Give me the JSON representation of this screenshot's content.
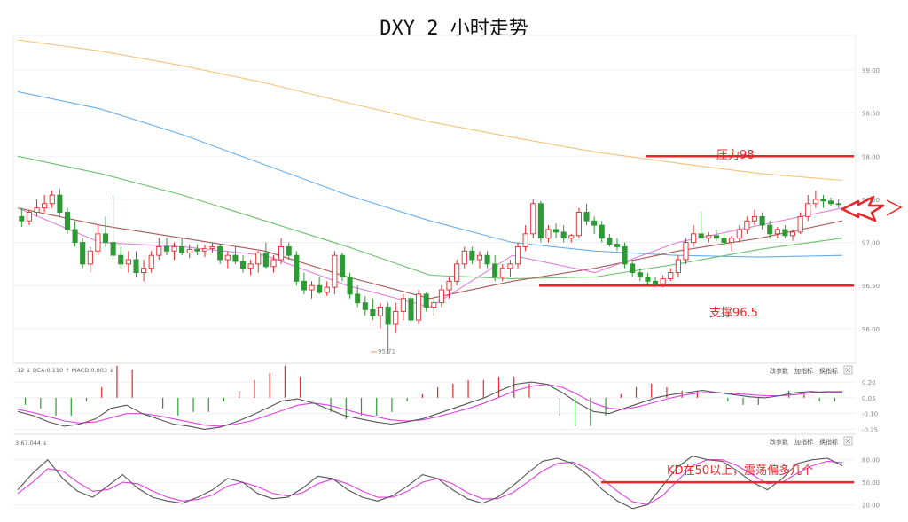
{
  "title": "DXY 2 小时走势",
  "annotations": {
    "resistance": "压力98",
    "support": "支撑96.5",
    "kd_note": "KD在50以上，震荡偏多几个",
    "low_label": "95.71"
  },
  "colors": {
    "up": "#e8272a",
    "down": "#2d9a35",
    "level_line": "#e8272a",
    "ma_orange": "#f5c27a",
    "ma_blue": "#6aaee8",
    "ma_green": "#6cbf6c",
    "ma_brown": "#a55a5a",
    "ma_pink": "#e080e0",
    "macd_line": "#555555",
    "signal_line": "#e040e0"
  },
  "panels": {
    "macd_header": ".12 ↓ DEA:0.110 ↑ MACD:0.003 ↓",
    "kd_header": "3:67.044 ↓",
    "buttons": [
      "改参数",
      "加指标",
      "换指标"
    ],
    "close_icon": "close-icon"
  },
  "chart_data": [
    {
      "type": "candlestick",
      "title": "DXY 2 小时走势",
      "yticks": [
        "99.00",
        "98.50",
        "98.00",
        "97.50",
        "97.00",
        "96.50",
        "96.00"
      ],
      "ylim": [
        95.7,
        99.35
      ],
      "levels": [
        {
          "label": "压力98",
          "value": 98.0
        },
        {
          "label": "支撑96.5",
          "value": 96.5
        }
      ],
      "low_marker": 95.71,
      "ohlc": [
        [
          97.3,
          97.4,
          97.18,
          97.25
        ],
        [
          97.25,
          97.38,
          97.2,
          97.35
        ],
        [
          97.35,
          97.5,
          97.3,
          97.4
        ],
        [
          97.4,
          97.55,
          97.35,
          97.45
        ],
        [
          97.45,
          97.6,
          97.4,
          97.55
        ],
        [
          97.55,
          97.62,
          97.3,
          97.35
        ],
        [
          97.35,
          97.4,
          97.1,
          97.15
        ],
        [
          97.15,
          97.25,
          96.95,
          97.0
        ],
        [
          97.0,
          97.05,
          96.7,
          96.75
        ],
        [
          96.75,
          96.95,
          96.65,
          96.9
        ],
        [
          96.9,
          97.2,
          96.85,
          97.1
        ],
        [
          97.1,
          97.3,
          96.95,
          97.0
        ],
        [
          97.0,
          97.55,
          96.8,
          96.85
        ],
        [
          96.85,
          96.95,
          96.7,
          96.75
        ],
        [
          96.75,
          96.9,
          96.65,
          96.8
        ],
        [
          96.8,
          96.9,
          96.6,
          96.65
        ],
        [
          96.65,
          96.8,
          96.55,
          96.7
        ],
        [
          96.7,
          96.9,
          96.65,
          96.85
        ],
        [
          96.85,
          97.05,
          96.8,
          96.95
        ],
        [
          96.95,
          97.05,
          96.85,
          96.9
        ],
        [
          96.9,
          97.0,
          96.8,
          96.95
        ],
        [
          96.95,
          97.05,
          96.85,
          96.88
        ],
        [
          96.88,
          96.98,
          96.82,
          96.92
        ],
        [
          96.92,
          96.98,
          96.85,
          96.9
        ],
        [
          96.9,
          96.97,
          96.83,
          96.93
        ],
        [
          96.93,
          97.0,
          96.88,
          96.95
        ],
        [
          96.95,
          96.98,
          96.75,
          96.8
        ],
        [
          96.8,
          96.9,
          96.7,
          96.85
        ],
        [
          96.85,
          96.95,
          96.75,
          96.78
        ],
        [
          96.78,
          96.85,
          96.65,
          96.7
        ],
        [
          96.7,
          96.8,
          96.62,
          96.75
        ],
        [
          96.75,
          96.9,
          96.65,
          96.88
        ],
        [
          96.88,
          97.0,
          96.7,
          96.72
        ],
        [
          96.72,
          96.85,
          96.65,
          96.8
        ],
        [
          96.8,
          97.05,
          96.75,
          96.95
        ],
        [
          96.95,
          97.0,
          96.8,
          96.85
        ],
        [
          96.85,
          96.9,
          96.5,
          96.55
        ],
        [
          96.55,
          96.65,
          96.4,
          96.45
        ],
        [
          96.45,
          96.55,
          96.35,
          96.5
        ],
        [
          96.5,
          96.6,
          96.4,
          96.42
        ],
        [
          96.42,
          96.55,
          96.38,
          96.48
        ],
        [
          96.48,
          96.9,
          96.4,
          96.85
        ],
        [
          96.85,
          96.88,
          96.55,
          96.6
        ],
        [
          96.6,
          96.65,
          96.35,
          96.4
        ],
        [
          96.4,
          96.5,
          96.25,
          96.3
        ],
        [
          96.3,
          96.38,
          96.15,
          96.22
        ],
        [
          96.22,
          96.35,
          96.1,
          96.15
        ],
        [
          96.15,
          96.3,
          96.0,
          96.25
        ],
        [
          96.25,
          96.3,
          95.71,
          96.05
        ],
        [
          96.05,
          96.3,
          95.95,
          96.2
        ],
        [
          96.2,
          96.4,
          96.1,
          96.35
        ],
        [
          96.35,
          96.38,
          96.05,
          96.1
        ],
        [
          96.1,
          96.45,
          96.05,
          96.4
        ],
        [
          96.4,
          96.42,
          96.2,
          96.25
        ],
        [
          96.25,
          96.35,
          96.15,
          96.3
        ],
        [
          96.3,
          96.5,
          96.25,
          96.45
        ],
        [
          96.45,
          96.6,
          96.35,
          96.55
        ],
        [
          96.55,
          96.8,
          96.5,
          96.75
        ],
        [
          96.75,
          96.95,
          96.7,
          96.9
        ],
        [
          96.9,
          96.95,
          96.75,
          96.8
        ],
        [
          96.8,
          96.9,
          96.7,
          96.85
        ],
        [
          96.85,
          96.9,
          96.7,
          96.75
        ],
        [
          96.75,
          96.85,
          96.55,
          96.6
        ],
        [
          96.6,
          96.75,
          96.55,
          96.7
        ],
        [
          96.7,
          96.8,
          96.6,
          96.75
        ],
        [
          96.75,
          97.0,
          96.7,
          96.95
        ],
        [
          96.95,
          97.2,
          96.9,
          97.1
        ],
        [
          97.1,
          97.5,
          97.05,
          97.45
        ],
        [
          97.45,
          97.48,
          97.0,
          97.05
        ],
        [
          97.05,
          97.2,
          97.0,
          97.15
        ],
        [
          97.15,
          97.22,
          97.05,
          97.12
        ],
        [
          97.12,
          97.2,
          97.0,
          97.05
        ],
        [
          97.05,
          97.1,
          97.0,
          97.08
        ],
        [
          97.08,
          97.4,
          97.05,
          97.35
        ],
        [
          97.35,
          97.45,
          97.2,
          97.25
        ],
        [
          97.25,
          97.3,
          97.1,
          97.2
        ],
        [
          97.2,
          97.25,
          97.0,
          97.05
        ],
        [
          97.05,
          97.1,
          96.95,
          96.98
        ],
        [
          96.98,
          97.05,
          96.9,
          96.95
        ],
        [
          96.95,
          97.0,
          96.7,
          96.75
        ],
        [
          96.75,
          96.8,
          96.6,
          96.65
        ],
        [
          96.65,
          96.7,
          96.55,
          96.6
        ],
        [
          96.6,
          96.65,
          96.5,
          96.55
        ],
        [
          96.55,
          96.6,
          96.48,
          96.52
        ],
        [
          96.52,
          96.62,
          96.48,
          96.58
        ],
        [
          96.58,
          96.7,
          96.55,
          96.65
        ],
        [
          96.65,
          96.85,
          96.6,
          96.8
        ],
        [
          96.8,
          97.05,
          96.75,
          97.0
        ],
        [
          97.0,
          97.2,
          96.95,
          97.1
        ],
        [
          97.1,
          97.35,
          97.05,
          97.05
        ],
        [
          97.05,
          97.12,
          97.0,
          97.08
        ],
        [
          97.08,
          97.15,
          97.02,
          97.05
        ],
        [
          97.05,
          97.1,
          96.95,
          97.0
        ],
        [
          97.0,
          97.08,
          96.9,
          97.05
        ],
        [
          97.05,
          97.2,
          97.0,
          97.15
        ],
        [
          97.15,
          97.3,
          97.1,
          97.25
        ],
        [
          97.25,
          97.38,
          97.2,
          97.3
        ],
        [
          97.3,
          97.35,
          97.15,
          97.2
        ],
        [
          97.2,
          97.25,
          97.05,
          97.1
        ],
        [
          97.1,
          97.18,
          97.05,
          97.15
        ],
        [
          97.15,
          97.2,
          97.05,
          97.08
        ],
        [
          97.08,
          97.15,
          97.02,
          97.12
        ],
        [
          97.12,
          97.35,
          97.1,
          97.3
        ],
        [
          97.3,
          97.55,
          97.25,
          97.45
        ],
        [
          97.45,
          97.6,
          97.4,
          97.5
        ],
        [
          97.5,
          97.55,
          97.4,
          97.48
        ],
        [
          97.48,
          97.52,
          97.42,
          97.45
        ],
        [
          97.45,
          97.5,
          97.4,
          97.44
        ]
      ],
      "moving_averages": [
        {
          "color": "#f5c27a",
          "values": [
            99.35,
            99.22,
            99.05,
            98.85,
            98.62,
            98.4,
            98.22,
            98.05,
            97.92,
            97.8,
            97.72
          ]
        },
        {
          "color": "#6aaee8",
          "values": [
            98.75,
            98.55,
            98.25,
            97.9,
            97.55,
            97.25,
            97.0,
            96.9,
            96.85,
            96.83,
            96.85
          ]
        },
        {
          "color": "#6cbf6c",
          "values": [
            98.0,
            97.8,
            97.55,
            97.25,
            96.95,
            96.62,
            96.58,
            96.6,
            96.75,
            96.92,
            97.05
          ]
        },
        {
          "color": "#a55a5a",
          "values": [
            97.4,
            97.2,
            97.05,
            96.9,
            96.6,
            96.35,
            96.55,
            96.7,
            96.9,
            97.05,
            97.25
          ]
        },
        {
          "color": "#e080e0",
          "values": [
            97.4,
            97.0,
            96.95,
            96.85,
            96.5,
            96.25,
            96.85,
            96.65,
            97.0,
            97.2,
            97.4
          ]
        }
      ]
    },
    {
      "type": "macd",
      "header": ".12 ↓ DEA:0.110 ↑ MACD:0.003 ↓",
      "yticks": [
        "0.20",
        "0.05",
        "-0.10",
        "-0.25"
      ],
      "ylim": [
        -0.28,
        0.26
      ],
      "dif": [
        -0.08,
        -0.12,
        -0.18,
        -0.22,
        -0.2,
        -0.15,
        -0.05,
        -0.02,
        -0.1,
        -0.15,
        -0.2,
        -0.22,
        -0.25,
        -0.23,
        -0.18,
        -0.12,
        -0.05,
        0.02,
        0.04,
        0.0,
        -0.06,
        -0.12,
        -0.15,
        -0.18,
        -0.2,
        -0.18,
        -0.15,
        -0.1,
        -0.05,
        0.0,
        0.05,
        0.12,
        0.18,
        0.2,
        0.18,
        0.1,
        0.0,
        -0.08,
        -0.1,
        -0.05,
        0.0,
        0.05,
        0.08,
        0.1,
        0.12,
        0.1,
        0.08,
        0.06,
        0.05,
        0.07,
        0.1,
        0.11,
        0.1,
        0.1
      ],
      "dea": [
        -0.06,
        -0.09,
        -0.13,
        -0.17,
        -0.19,
        -0.18,
        -0.14,
        -0.1,
        -0.1,
        -0.12,
        -0.15,
        -0.18,
        -0.21,
        -0.22,
        -0.2,
        -0.17,
        -0.12,
        -0.07,
        -0.02,
        0.0,
        -0.02,
        -0.06,
        -0.1,
        -0.13,
        -0.16,
        -0.17,
        -0.16,
        -0.13,
        -0.09,
        -0.05,
        0.0,
        0.06,
        0.12,
        0.16,
        0.18,
        0.15,
        0.08,
        0.0,
        -0.05,
        -0.06,
        -0.03,
        0.01,
        0.05,
        0.08,
        0.1,
        0.1,
        0.09,
        0.08,
        0.07,
        0.07,
        0.08,
        0.1,
        0.11,
        0.11
      ],
      "hist": [
        -0.02,
        -0.03,
        -0.05,
        -0.05,
        -0.01,
        0.03,
        0.09,
        0.08,
        0.0,
        -0.03,
        -0.05,
        -0.04,
        -0.04,
        -0.01,
        0.02,
        0.05,
        0.07,
        0.09,
        0.06,
        0.0,
        -0.04,
        -0.06,
        -0.05,
        -0.05,
        -0.04,
        -0.01,
        0.01,
        0.03,
        0.04,
        0.05,
        0.05,
        0.06,
        0.06,
        0.04,
        0.0,
        -0.05,
        -0.08,
        -0.08,
        -0.05,
        0.01,
        0.03,
        0.04,
        0.03,
        0.02,
        0.02,
        0.0,
        -0.01,
        -0.02,
        -0.02,
        0.0,
        0.02,
        0.01,
        -0.01,
        -0.01
      ]
    },
    {
      "type": "kd",
      "header": "3:67.044 ↓",
      "yticks": [
        "80.00",
        "50.00",
        "20.00"
      ],
      "ylim": [
        10,
        95
      ],
      "kd_level": 50,
      "k": [
        40,
        62,
        80,
        55,
        38,
        30,
        45,
        60,
        42,
        30,
        25,
        22,
        30,
        40,
        55,
        50,
        35,
        28,
        30,
        42,
        58,
        55,
        40,
        30,
        25,
        32,
        45,
        60,
        55,
        40,
        28,
        22,
        30,
        45,
        62,
        78,
        82,
        75,
        60,
        40,
        25,
        15,
        20,
        45,
        70,
        85,
        80,
        78,
        65,
        50,
        40,
        55,
        75,
        80,
        82,
        72
      ],
      "d": [
        35,
        50,
        68,
        65,
        50,
        38,
        40,
        50,
        48,
        38,
        30,
        25,
        27,
        33,
        45,
        50,
        44,
        35,
        32,
        36,
        48,
        54,
        48,
        38,
        30,
        30,
        38,
        50,
        55,
        48,
        36,
        28,
        28,
        36,
        50,
        65,
        75,
        77,
        68,
        54,
        38,
        24,
        20,
        32,
        52,
        72,
        80,
        80,
        72,
        60,
        48,
        50,
        62,
        72,
        78,
        76
      ]
    }
  ]
}
